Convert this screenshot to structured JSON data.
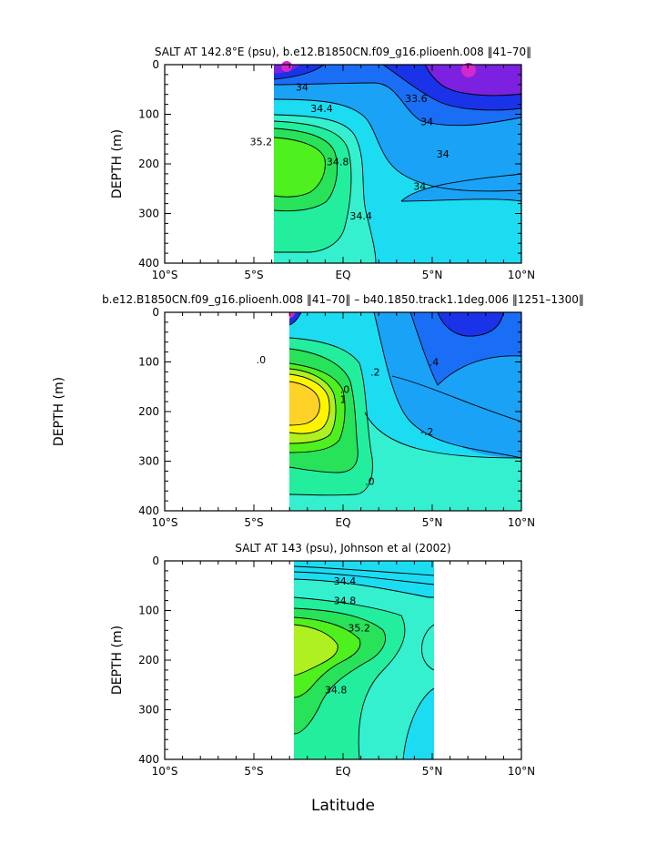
{
  "x_axis_title": "Latitude",
  "chart_data": [
    {
      "type": "heatmap",
      "title": "SALT AT 142.8°E (psu), b.e12.B1850CN.f09_g16.plioenh.008 ‖41–70‖",
      "xlabel": "",
      "ylabel": "DEPTH (m)",
      "xlim": [
        -10,
        10
      ],
      "ylim": [
        400,
        0
      ],
      "x_ticks": [
        -10,
        -5,
        0,
        5,
        10
      ],
      "x_tick_labels": [
        "10°S",
        "5°S",
        "EQ",
        "5°N",
        "10°N"
      ],
      "y_ticks": [
        0,
        100,
        200,
        300,
        400
      ],
      "y_tick_labels": [
        "0",
        "100",
        "200",
        "300",
        "400"
      ],
      "data_extent": {
        "lat": [
          -6.2,
          10
        ],
        "depth": [
          0,
          400
        ]
      },
      "contour_labels": [
        {
          "text": "34",
          "lat": -2.3,
          "depth": 45
        },
        {
          "text": "34.4",
          "lat": -1.2,
          "depth": 88
        },
        {
          "text": "33.6",
          "lat": 4.1,
          "depth": 68
        },
        {
          "text": "34",
          "lat": 4.7,
          "depth": 115
        },
        {
          "text": "35.2",
          "lat": -4.6,
          "depth": 155
        },
        {
          "text": "34.8",
          "lat": -0.3,
          "depth": 195
        },
        {
          "text": "34",
          "lat": 5.6,
          "depth": 180
        },
        {
          "text": "34",
          "lat": 4.3,
          "depth": 245
        },
        {
          "text": "34.4",
          "lat": 1.0,
          "depth": 305
        }
      ]
    },
    {
      "type": "heatmap",
      "title": "b.e12.B1850CN.f09_g16.plioenh.008 ‖41–70‖ – b40.1850.track1.1deg.006 ‖1251–1300‖",
      "xlabel": "",
      "ylabel": "DEPTH (m)",
      "xlim": [
        -10,
        10
      ],
      "ylim": [
        400,
        0
      ],
      "x_ticks": [
        -10,
        -5,
        0,
        5,
        10
      ],
      "x_tick_labels": [
        "10°S",
        "5°S",
        "EQ",
        "5°N",
        "10°N"
      ],
      "y_ticks": [
        0,
        100,
        200,
        300,
        400
      ],
      "y_tick_labels": [
        "0",
        "100",
        "200",
        "300",
        "400"
      ],
      "data_extent": {
        "lat": [
          -5.4,
          10
        ],
        "depth": [
          0,
          400
        ]
      },
      "contour_labels": [
        {
          "text": ".0",
          "lat": -4.6,
          "depth": 95
        },
        {
          "text": ".2",
          "lat": 1.8,
          "depth": 120
        },
        {
          "text": ".4",
          "lat": 5.1,
          "depth": 100
        },
        {
          "text": ".0",
          "lat": 0.1,
          "depth": 155
        },
        {
          "text": "1",
          "lat": 0.0,
          "depth": 175
        },
        {
          "text": "-.2",
          "lat": 4.7,
          "depth": 240
        },
        {
          "text": ".0",
          "lat": 1.5,
          "depth": 340
        }
      ]
    },
    {
      "type": "heatmap",
      "title": "SALT AT 143 (psu), Johnson et al (2002)",
      "xlabel": "Latitude",
      "ylabel": "DEPTH (m)",
      "xlim": [
        -10,
        10
      ],
      "ylim": [
        400,
        0
      ],
      "x_ticks": [
        -10,
        -5,
        0,
        5,
        10
      ],
      "x_tick_labels": [
        "10°S",
        "5°S",
        "EQ",
        "5°N",
        "10°N"
      ],
      "y_ticks": [
        0,
        100,
        200,
        300,
        400
      ],
      "y_tick_labels": [
        "0",
        "100",
        "200",
        "300",
        "400"
      ],
      "data_extent": {
        "lat": [
          -2.7,
          5
        ],
        "depth": [
          0,
          400
        ]
      },
      "contour_labels": [
        {
          "text": "34.4",
          "lat": 0.1,
          "depth": 40
        },
        {
          "text": "34.8",
          "lat": 0.1,
          "depth": 80
        },
        {
          "text": "35.2",
          "lat": 0.9,
          "depth": 135
        },
        {
          "text": "34.8",
          "lat": -0.4,
          "depth": 260
        }
      ]
    }
  ],
  "colors": {
    "violet": "#7c21e0",
    "magenta": "#d228cc",
    "dark_blue": "#1a32e8",
    "medium_blue": "#1a6ef5",
    "light_blue": "#1aa2f6",
    "cyan": "#1cdcf2",
    "aqua": "#34f0cf",
    "sea_green": "#22ee9e",
    "green": "#28e25a",
    "bright_green": "#4ef01e",
    "yellow_green": "#aef020",
    "yellow": "#fff500",
    "gold": "#ffd228"
  }
}
